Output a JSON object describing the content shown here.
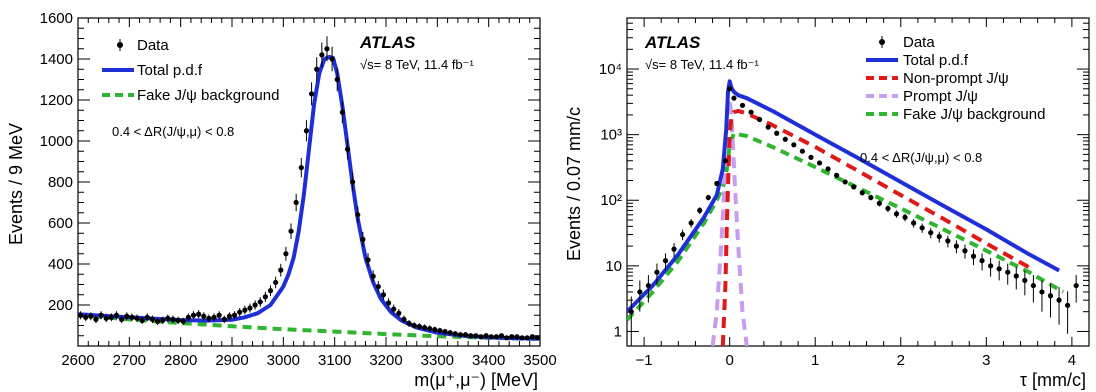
{
  "chart_data": [
    {
      "type": "line",
      "xlabel": "m(μ⁺,μ⁻) [MeV]",
      "ylabel": "Events / 9 MeV",
      "xlim": [
        2600,
        3500
      ],
      "ylim": [
        0,
        1600
      ],
      "xticks": [
        "2600",
        "2700",
        "2800",
        "2900",
        "3000",
        "3100",
        "3200",
        "3300",
        "3400",
        "3500"
      ],
      "yticks": [
        "200",
        "400",
        "600",
        "800",
        "1000",
        "1200",
        "1400",
        "1600"
      ],
      "experiment": "ATLAS",
      "energy_text": "√s= 8 TeV, 11.4 fb⁻¹",
      "cut_text": "0.4 < ΔR(J/ψ,μ) < 0.8",
      "legend": [
        {
          "label": "Data",
          "style": "marker",
          "color": "#000000"
        },
        {
          "label": "Total p.d.f",
          "style": "solid",
          "color": "#1f2fd6"
        },
        {
          "label": "Fake J/ψ background",
          "style": "dashed",
          "color": "#2fb52f"
        }
      ],
      "series": [
        {
          "name": "Data",
          "x": [
            2605,
            2615,
            2625,
            2635,
            2645,
            2655,
            2665,
            2675,
            2685,
            2695,
            2705,
            2715,
            2725,
            2735,
            2745,
            2755,
            2765,
            2775,
            2785,
            2795,
            2805,
            2815,
            2825,
            2835,
            2845,
            2855,
            2865,
            2875,
            2885,
            2895,
            2905,
            2915,
            2925,
            2935,
            2945,
            2955,
            2965,
            2975,
            2985,
            2995,
            3005,
            3015,
            3025,
            3035,
            3045,
            3055,
            3065,
            3075,
            3085,
            3095,
            3105,
            3115,
            3125,
            3135,
            3145,
            3155,
            3165,
            3175,
            3185,
            3195,
            3205,
            3215,
            3225,
            3235,
            3245,
            3255,
            3265,
            3275,
            3285,
            3295,
            3305,
            3315,
            3325,
            3335,
            3345,
            3355,
            3365,
            3375,
            3385,
            3395,
            3405,
            3415,
            3425,
            3435,
            3445,
            3455,
            3465,
            3475,
            3485,
            3495
          ],
          "y": [
            150,
            140,
            145,
            130,
            150,
            135,
            140,
            150,
            130,
            145,
            140,
            135,
            125,
            140,
            130,
            120,
            125,
            135,
            130,
            125,
            120,
            140,
            150,
            155,
            145,
            135,
            140,
            150,
            130,
            145,
            150,
            165,
            175,
            185,
            200,
            215,
            240,
            270,
            310,
            370,
            450,
            560,
            700,
            870,
            1050,
            1230,
            1350,
            1420,
            1450,
            1400,
            1300,
            1140,
            960,
            800,
            640,
            520,
            420,
            340,
            290,
            250,
            210,
            180,
            160,
            130,
            110,
            100,
            95,
            90,
            85,
            80,
            75,
            70,
            65,
            60,
            55,
            55,
            50,
            50,
            45,
            50,
            45,
            45,
            50,
            40,
            45,
            45,
            40,
            40,
            45,
            40
          ]
        },
        {
          "name": "Total p.d.f",
          "x": [
            2600,
            2650,
            2700,
            2750,
            2800,
            2850,
            2900,
            2925,
            2950,
            2975,
            3000,
            3010,
            3020,
            3030,
            3040,
            3050,
            3060,
            3070,
            3080,
            3090,
            3097,
            3105,
            3115,
            3125,
            3135,
            3145,
            3160,
            3175,
            3190,
            3210,
            3230,
            3260,
            3300,
            3350,
            3400,
            3450,
            3500
          ],
          "y": [
            155,
            148,
            140,
            133,
            127,
            124,
            128,
            140,
            160,
            200,
            290,
            350,
            430,
            560,
            740,
            960,
            1180,
            1330,
            1400,
            1410,
            1405,
            1330,
            1170,
            980,
            790,
            620,
            430,
            310,
            230,
            165,
            125,
            90,
            65,
            50,
            42,
            38,
            36
          ]
        },
        {
          "name": "Fake J/ψ background",
          "x": [
            2600,
            2700,
            2800,
            2900,
            3000,
            3100,
            3200,
            3300,
            3400,
            3500
          ],
          "y": [
            150,
            130,
            112,
            96,
            82,
            70,
            58,
            48,
            40,
            34
          ]
        }
      ]
    },
    {
      "type": "line",
      "xlabel": "τ [mm/c]",
      "ylabel": "Events / 0.07 mm/c",
      "yscale": "log",
      "xlim": [
        -1.2,
        4.2
      ],
      "ylim": [
        0.6,
        60000
      ],
      "xticks": [
        "−1",
        "0",
        "1",
        "2",
        "3",
        "4"
      ],
      "yticks": [
        "1",
        "10",
        "10²",
        "10³",
        "10⁴"
      ],
      "experiment": "ATLAS",
      "energy_text": "√s= 8 TeV, 11.4 fb⁻¹",
      "cut_text": "0.4 < ΔR(J/ψ,μ) < 0.8",
      "legend": [
        {
          "label": "Data",
          "style": "marker",
          "color": "#000000"
        },
        {
          "label": "Total p.d.f",
          "style": "solid",
          "color": "#1f2fd6"
        },
        {
          "label": "Non-prompt J/ψ",
          "style": "dashed",
          "color": "#e01818"
        },
        {
          "label": "Prompt J/ψ",
          "style": "dashed",
          "color": "#c89cf0"
        },
        {
          "label": "Fake J/ψ background",
          "style": "dashed",
          "color": "#2fb52f"
        }
      ],
      "series": [
        {
          "name": "Data",
          "x": [
            -1.15,
            -1.05,
            -0.95,
            -0.85,
            -0.75,
            -0.65,
            -0.55,
            -0.45,
            -0.35,
            -0.25,
            -0.15,
            -0.05,
            0.0,
            0.05,
            0.15,
            0.25,
            0.35,
            0.45,
            0.55,
            0.65,
            0.75,
            0.85,
            0.95,
            1.05,
            1.15,
            1.25,
            1.35,
            1.45,
            1.55,
            1.65,
            1.75,
            1.85,
            1.95,
            2.05,
            2.15,
            2.25,
            2.35,
            2.45,
            2.55,
            2.65,
            2.75,
            2.85,
            2.95,
            3.05,
            3.15,
            3.25,
            3.35,
            3.45,
            3.55,
            3.65,
            3.75,
            3.85,
            3.95,
            4.05
          ],
          "y": [
            2,
            4,
            5,
            8,
            12,
            18,
            30,
            45,
            70,
            110,
            180,
            400,
            5000,
            3600,
            2800,
            2200,
            1700,
            1300,
            1050,
            850,
            700,
            560,
            450,
            370,
            300,
            240,
            190,
            160,
            130,
            110,
            90,
            75,
            62,
            55,
            45,
            38,
            32,
            28,
            24,
            20,
            17,
            14,
            12,
            10,
            9,
            8,
            7,
            6,
            5,
            4,
            3.5,
            3,
            2.5,
            5
          ]
        },
        {
          "name": "Total p.d.f",
          "x": [
            -1.2,
            -0.9,
            -0.6,
            -0.3,
            -0.15,
            -0.08,
            -0.04,
            -0.02,
            0.0,
            0.02,
            0.05,
            0.1,
            0.2,
            0.5,
            1.0,
            1.5,
            2.0,
            2.5,
            3.0,
            3.5,
            3.85
          ],
          "y": [
            2,
            5,
            15,
            55,
            120,
            300,
            1200,
            4500,
            6500,
            5200,
            4500,
            4000,
            3600,
            2300,
            1000,
            440,
            190,
            82,
            36,
            15,
            8.5
          ]
        },
        {
          "name": "Non-prompt J/ψ",
          "x": [
            -0.08,
            -0.05,
            -0.03,
            0.0,
            0.02,
            0.05,
            0.1,
            0.2,
            0.5,
            1.0,
            1.5,
            2.0,
            2.5,
            3.0,
            3.5
          ],
          "y": [
            0.6,
            5,
            60,
            1000,
            1800,
            2200,
            2300,
            2100,
            1400,
            650,
            280,
            120,
            52,
            22,
            9.5
          ]
        },
        {
          "name": "Prompt J/ψ",
          "x": [
            -0.2,
            -0.15,
            -0.1,
            -0.07,
            -0.04,
            -0.02,
            0.0,
            0.02,
            0.04,
            0.07,
            0.1,
            0.15,
            0.2
          ],
          "y": [
            0.6,
            2,
            20,
            100,
            600,
            2000,
            3500,
            2000,
            600,
            100,
            20,
            2,
            0.6
          ]
        },
        {
          "name": "Fake J/ψ background",
          "x": [
            -1.2,
            -0.9,
            -0.6,
            -0.3,
            -0.15,
            -0.05,
            0.0,
            0.05,
            0.2,
            0.5,
            1.0,
            1.5,
            2.0,
            2.5,
            3.0,
            3.5,
            3.9
          ],
          "y": [
            1.5,
            4,
            12,
            45,
            100,
            200,
            700,
            1050,
            950,
            650,
            320,
            155,
            75,
            36,
            17,
            8,
            4
          ]
        }
      ]
    }
  ]
}
